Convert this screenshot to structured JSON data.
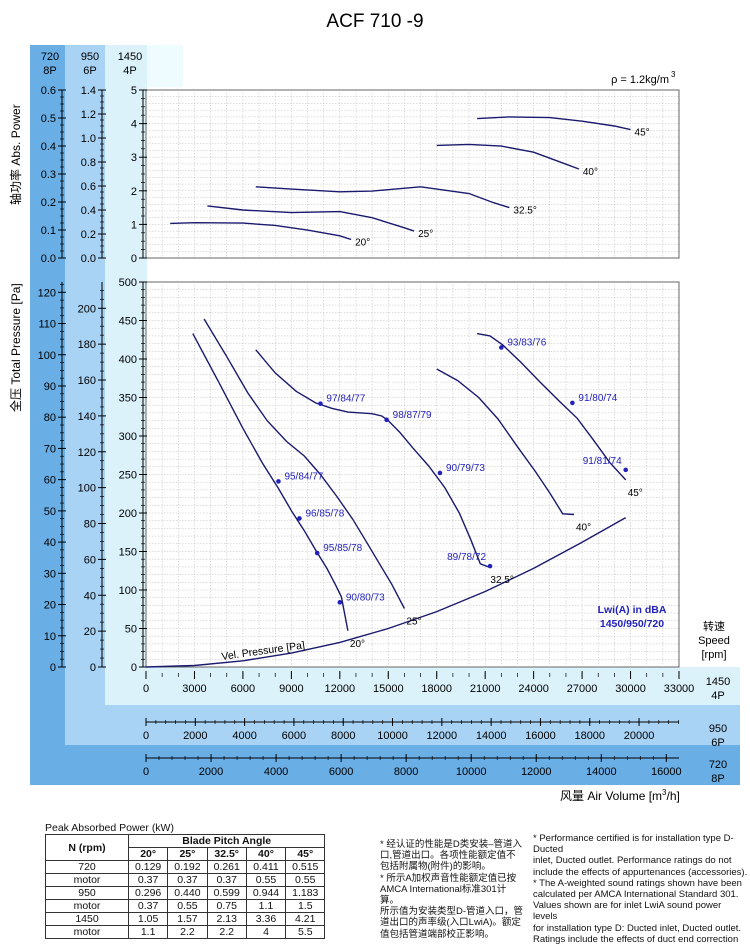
{
  "chart_data": {
    "type": "line",
    "title": "ACF 710 -9",
    "density": "ρ = 1.2kg/m",
    "density_sup": "3",
    "power_chart": {
      "ylabel_cn": "轴功率",
      "ylabel_en": "Abs. Power",
      "speed_axes": [
        {
          "label": "720",
          "sub": "8P",
          "ticks": [
            "0.0",
            "0.1",
            "0.2",
            "0.3",
            "0.4",
            "0.5",
            "0.6"
          ],
          "ylim": [
            0,
            0.6
          ]
        },
        {
          "label": "950",
          "sub": "6P",
          "ticks": [
            "0.0",
            "0.2",
            "0.4",
            "0.6",
            "0.8",
            "1.0",
            "1.2",
            "1.4"
          ],
          "ylim": [
            0,
            1.4
          ]
        },
        {
          "label": "1450",
          "sub": "4P",
          "ticks": [
            "0",
            "1",
            "2",
            "3",
            "4",
            "5"
          ],
          "ylim": [
            0,
            5
          ]
        }
      ],
      "series": [
        {
          "name": "20°",
          "x": [
            1500,
            3000,
            6000,
            8000,
            10000,
            12000,
            12700
          ],
          "y": [
            1.03,
            1.05,
            1.04,
            0.97,
            0.83,
            0.66,
            0.55
          ]
        },
        {
          "name": "25°",
          "x": [
            3800,
            6000,
            9000,
            12000,
            14000,
            16000,
            16600
          ],
          "y": [
            1.55,
            1.43,
            1.35,
            1.38,
            1.2,
            0.9,
            0.8
          ]
        },
        {
          "name": "32.5°",
          "x": [
            6800,
            9000,
            12000,
            14000,
            17000,
            20000,
            21500,
            22500
          ],
          "y": [
            2.12,
            2.05,
            1.97,
            1.99,
            2.12,
            1.92,
            1.65,
            1.5
          ]
        },
        {
          "name": "40°",
          "x": [
            18000,
            20000,
            22000,
            24000,
            25500,
            26800
          ],
          "y": [
            3.35,
            3.38,
            3.33,
            3.15,
            2.88,
            2.65
          ]
        },
        {
          "name": "45°",
          "x": [
            20500,
            22500,
            25000,
            27000,
            29000,
            30000
          ],
          "y": [
            4.15,
            4.2,
            4.18,
            4.07,
            3.93,
            3.82
          ]
        }
      ]
    },
    "pressure_chart": {
      "ylabel_cn": "全压",
      "ylabel_en": "Total Pressure [Pa]",
      "xlabel_cn": "风量",
      "xlabel_en": "Air Volume [m",
      "xlabel_sup": "3",
      "xlabel_tail": "/h]",
      "speed_label_cn": "转速",
      "speed_label_en": "Speed",
      "speed_label_unit": "[rpm]",
      "left_axes": [
        {
          "ticks": [
            "0",
            "10",
            "20",
            "30",
            "40",
            "50",
            "60",
            "70",
            "80",
            "90",
            "100",
            "110",
            "120"
          ],
          "ylim": [
            0,
            120
          ]
        },
        {
          "ticks": [
            "0",
            "20",
            "40",
            "60",
            "80",
            "100",
            "120",
            "140",
            "160",
            "180",
            "200"
          ],
          "ylim": [
            0,
            220
          ]
        }
      ],
      "ylim": [
        0,
        500
      ],
      "yticks": [
        "0",
        "50",
        "100",
        "150",
        "200",
        "250",
        "300",
        "350",
        "400",
        "450",
        "500"
      ],
      "x_axes": [
        {
          "label": "1450",
          "sub": "4P",
          "ticks": [
            "0",
            "3000",
            "6000",
            "9000",
            "12000",
            "15000",
            "18000",
            "21000",
            "24000",
            "27000",
            "30000",
            "33000"
          ],
          "xlim": [
            0,
            33000
          ]
        },
        {
          "label": "950",
          "sub": "6P",
          "ticks": [
            "0",
            "2000",
            "4000",
            "6000",
            "8000",
            "10000",
            "12000",
            "14000",
            "16000",
            "18000",
            "20000"
          ],
          "xlim": [
            0,
            21620
          ]
        },
        {
          "label": "720",
          "sub": "8P",
          "ticks": [
            "0",
            "2000",
            "4000",
            "6000",
            "8000",
            "10000",
            "12000",
            "14000",
            "16000"
          ],
          "xlim": [
            0,
            16390
          ]
        }
      ],
      "legend_title": "Lwi(A) in dBA",
      "legend_sub": "1450/950/720",
      "vel_pressure_label": "Vel. Pressure [Pa]",
      "vel_pressure": {
        "x": [
          0,
          3000,
          6000,
          9000,
          12000,
          15000,
          18000,
          21000,
          24000,
          27000,
          29700
        ],
        "y": [
          0,
          2,
          8,
          18,
          32,
          50,
          72,
          98,
          128,
          162,
          194
        ]
      },
      "series": [
        {
          "name": "20°",
          "x": [
            2900,
            4500,
            6000,
            7200,
            8200,
            9000,
            9800,
            10500,
            11200,
            11700,
            12100,
            12500
          ],
          "y": [
            433,
            370,
            310,
            265,
            232,
            203,
            177,
            152,
            128,
            108,
            91,
            47
          ]
        },
        {
          "name": "25°",
          "x": [
            3600,
            5000,
            6300,
            7500,
            8700,
            9800,
            10800,
            11800,
            12800,
            13600,
            14400,
            15200,
            16000
          ],
          "y": [
            452,
            403,
            356,
            320,
            293,
            274,
            250,
            222,
            192,
            164,
            136,
            108,
            76
          ]
        },
        {
          "name": "32.5°",
          "x": [
            6800,
            8000,
            9300,
            10500,
            11500,
            12500,
            13300,
            14000,
            14600,
            15000,
            15700,
            16500,
            17500,
            18500,
            19400,
            20100,
            20700,
            21200
          ],
          "y": [
            412,
            382,
            358,
            343,
            336,
            331,
            330,
            329,
            326,
            320,
            305,
            285,
            261,
            233,
            200,
            166,
            134,
            130
          ]
        },
        {
          "name": "40°",
          "x": [
            18000,
            19300,
            20600,
            21800,
            23000,
            24100,
            25000,
            25800,
            26500
          ],
          "y": [
            387,
            372,
            350,
            322,
            286,
            254,
            226,
            199,
            198
          ]
        },
        {
          "name": "45°",
          "x": [
            20500,
            21300,
            22100,
            23200,
            24400,
            25600,
            26700,
            27700,
            28700,
            29700
          ],
          "y": [
            433,
            430,
            418,
            396,
            370,
            345,
            323,
            295,
            266,
            243
          ]
        }
      ],
      "points": [
        {
          "label": "97/84/77",
          "x": 10800,
          "y": 342
        },
        {
          "label": "98/87/79",
          "x": 14900,
          "y": 321
        },
        {
          "label": "95/84/77",
          "x": 8200,
          "y": 241
        },
        {
          "label": "96/85/78",
          "x": 9500,
          "y": 193
        },
        {
          "label": "95/85/78",
          "x": 10600,
          "y": 148
        },
        {
          "label": "90/80/73",
          "x": 12000,
          "y": 84
        },
        {
          "label": "90/79/73",
          "x": 18200,
          "y": 252
        },
        {
          "label": "89/78/72",
          "x": 21300,
          "y": 131
        },
        {
          "label": "93/83/76",
          "x": 22000,
          "y": 415
        },
        {
          "label": "91/80/74",
          "x": 26400,
          "y": 343
        },
        {
          "label": "91/81/74",
          "x": 29700,
          "y": 256
        }
      ],
      "grid": true
    }
  },
  "power_table": {
    "title": "Peak Absorbed Power (kW)",
    "header_n": "N (rpm)",
    "header_angle": "Blade Pitch Angle",
    "angles": [
      "20°",
      "25°",
      "32.5°",
      "40°",
      "45°"
    ],
    "rows": [
      {
        "n": "720",
        "values": [
          "0.129",
          "0.192",
          "0.261",
          "0.411",
          "0.515"
        ]
      },
      {
        "n": "motor",
        "values": [
          "0.37",
          "0.37",
          "0.37",
          "0.55",
          "0.55"
        ]
      },
      {
        "n": "950",
        "values": [
          "0.296",
          "0.440",
          "0.599",
          "0.944",
          "1.183"
        ]
      },
      {
        "n": "motor",
        "values": [
          "0.37",
          "0.55",
          "0.75",
          "1.1",
          "1.5"
        ]
      },
      {
        "n": "1450",
        "values": [
          "1.05",
          "1.57",
          "2.13",
          "3.36",
          "4.21"
        ]
      },
      {
        "n": "motor",
        "values": [
          "1.1",
          "2.2",
          "2.2",
          "4",
          "5.5"
        ]
      }
    ]
  },
  "notes_cn": [
    "* 经认证的性能是D类安装–管道入",
    "口,管道出口。各项性能额定值不",
    "包括附属物(附件)的影响。",
    "* 所示A加权声音性能额定值已按",
    "AMCA International标准301计算。",
    "所示值为安装类型D-管道入口，管",
    "道出口的声率级(入口LwiA)。额定",
    "值包括管道端部校正影响。"
  ],
  "notes_en": [
    "* Performance certified is for installation type D-Ducted",
    "inlet, Ducted outlet. Performance ratings do not",
    "include the effects of appurtenances (accessories).",
    "* The A-weighted sound ratings shown have been",
    "calculated per AMCA International Standard 301.",
    "Values shown are for inlet LwiA sound power levels",
    "for installation type D: Ducted inlet, Ducted outlet.",
    "Ratings include the effects of duct end correction"
  ],
  "colors": {
    "curve": "#1a1a6e",
    "label": "#2222bb",
    "band_dark": "#6aaee6",
    "band_mid": "#a9d3f5",
    "band_light": "#dcf2fb",
    "band_pale": "#eefcff"
  }
}
